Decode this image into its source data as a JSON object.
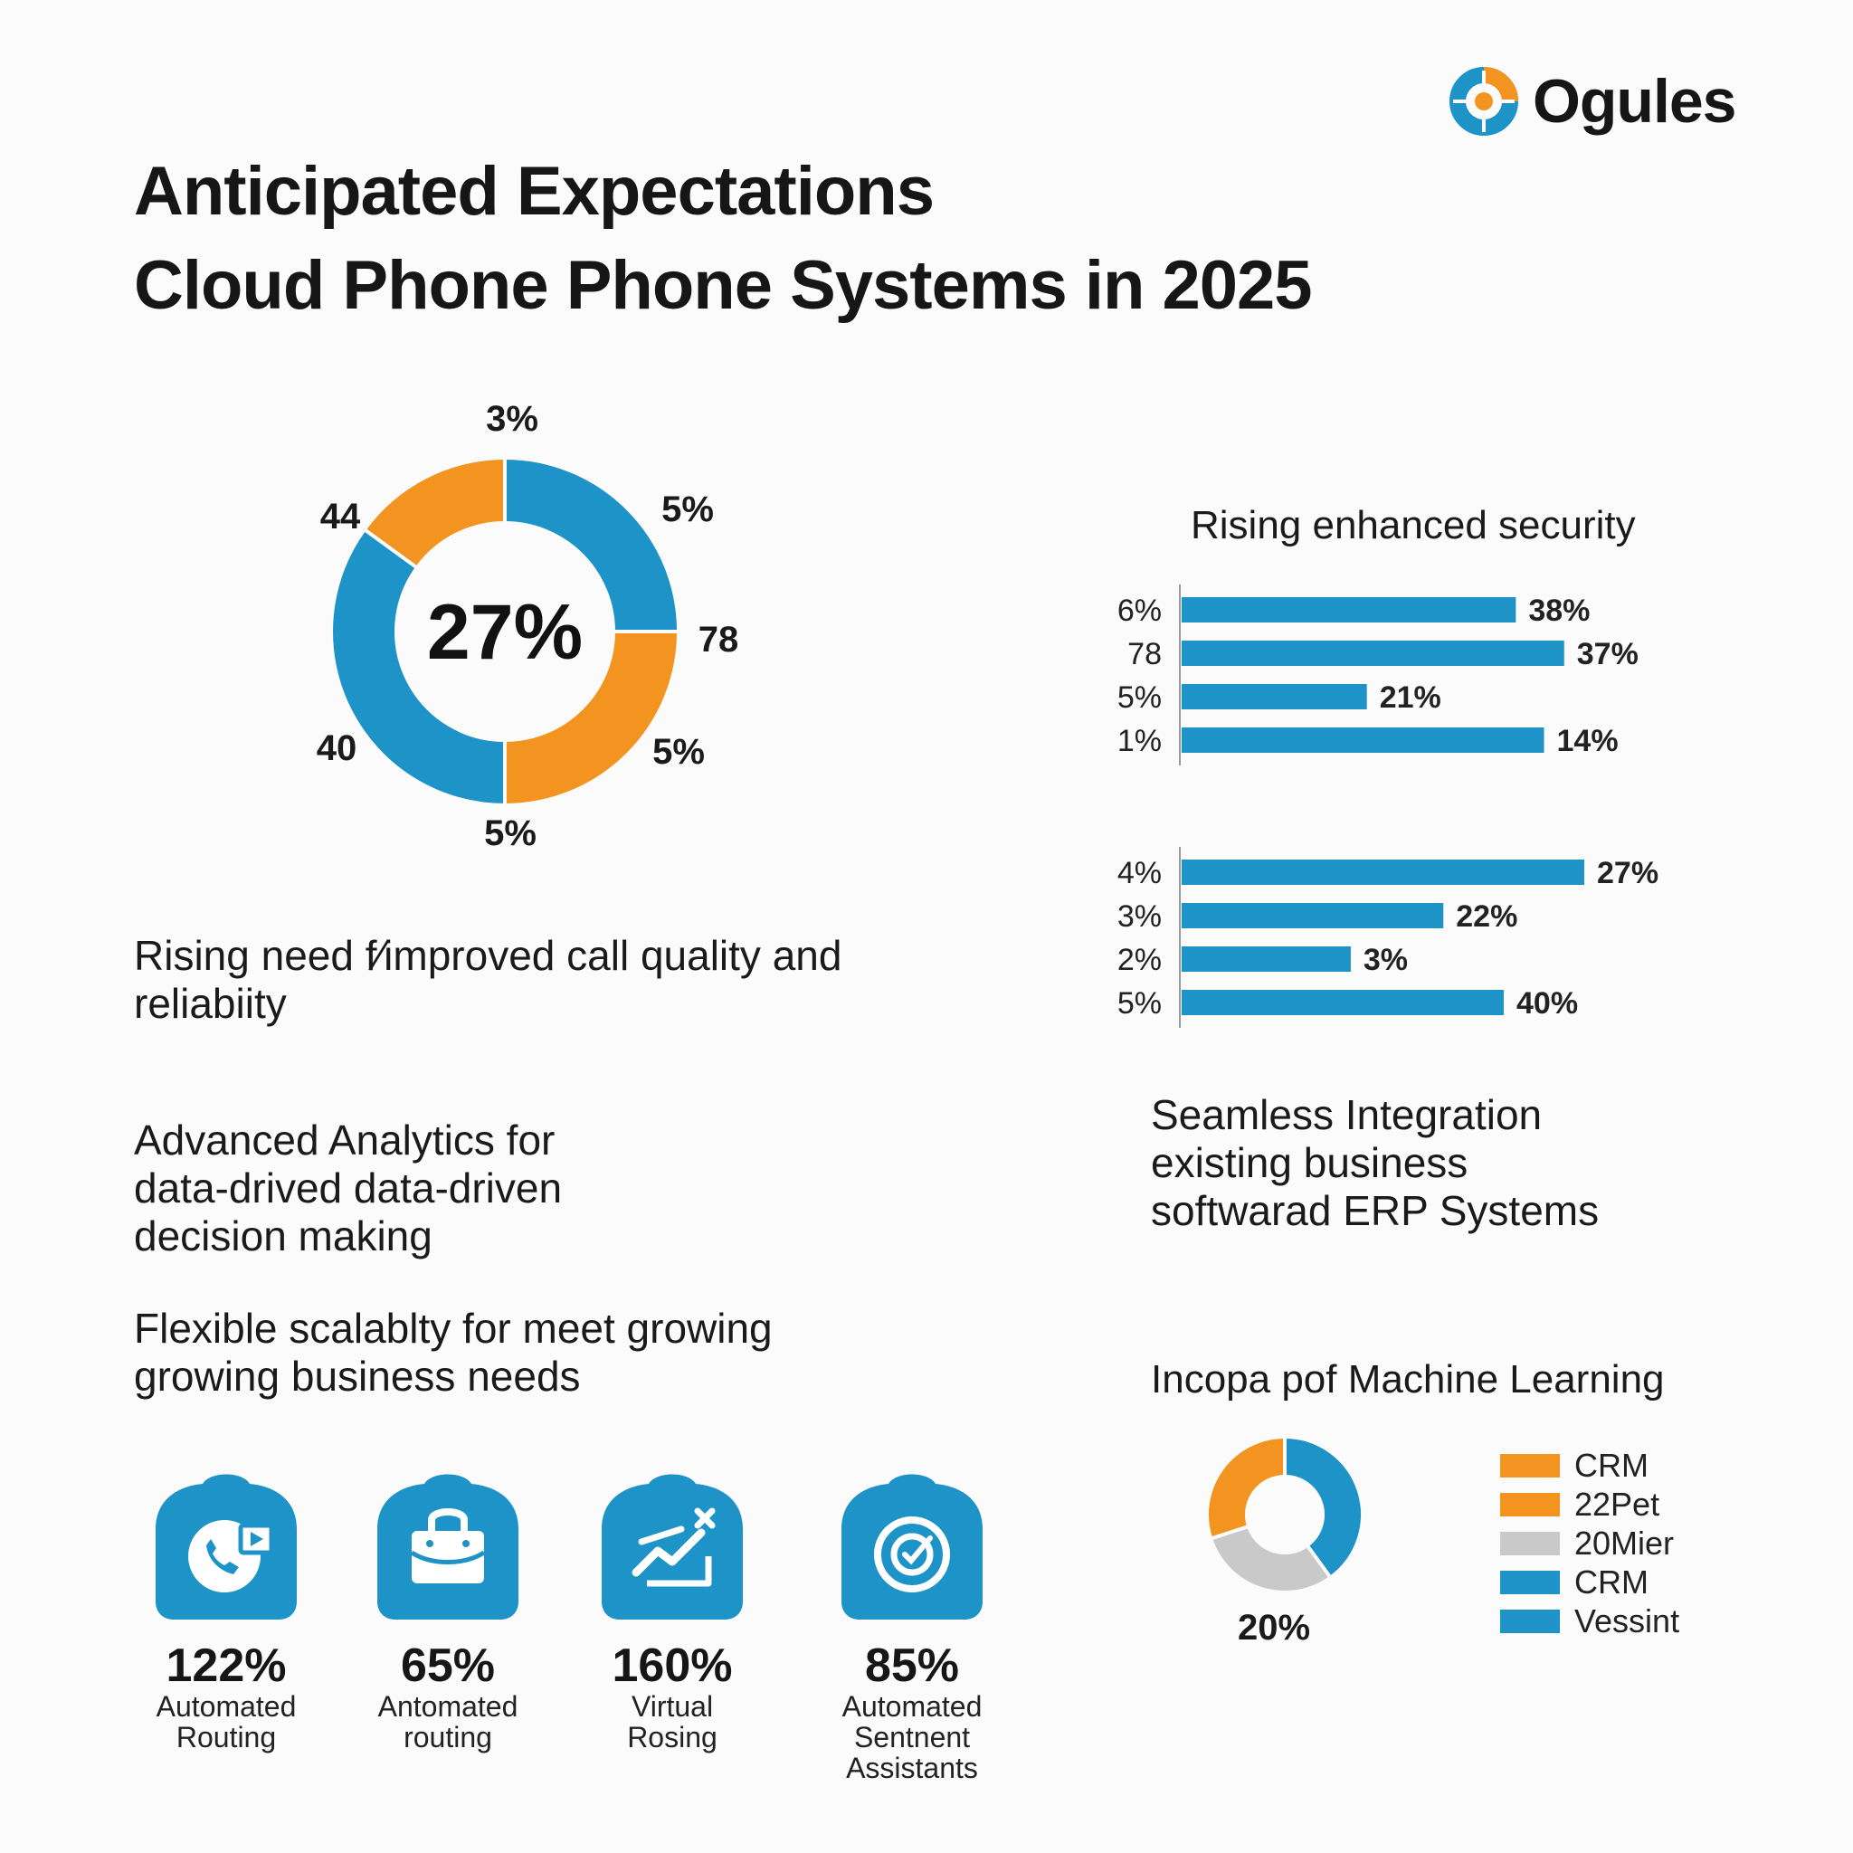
{
  "brand": {
    "name": "Ogules",
    "logo_icon": "ogules-logo-icon",
    "colors": {
      "blue": "#1e93c8",
      "orange": "#f2941f"
    }
  },
  "title": {
    "line1": "Anticipated Expectations",
    "line2": "Cloud Phone Phone Systems in 2025"
  },
  "headlines": {
    "call_quality": [
      "Rising need f⁄improved call quality and",
      "reliabiity"
    ],
    "analytics": [
      "Advanced Analytics for",
      "data-drived data-driven",
      "decision making"
    ],
    "scalability": [
      "Flexible scalablty for meet growing",
      "growing business needs"
    ],
    "integration": [
      "Seamless Integration",
      "existing business",
      "softwarad ERP Systems"
    ]
  },
  "stats": [
    {
      "icon": "phone-call-icon",
      "value": "122%",
      "label_1": "Automated",
      "label_2": "Routing"
    },
    {
      "icon": "briefcase-icon",
      "value": "65%",
      "label_1": "Antomated",
      "label_2": "routing"
    },
    {
      "icon": "trend-chart-icon",
      "value": "160%",
      "label_1": "Virtual",
      "label_2": "Rosing"
    },
    {
      "icon": "target-icon",
      "value": "85%",
      "label_1": "Automated",
      "label_2": "Sentnent Assistants"
    }
  ],
  "chart_data": [
    {
      "type": "pie",
      "variant": "donut",
      "center_label": "27%",
      "slice_labels": [
        "3%",
        "5%",
        "78",
        "5%",
        "5%",
        "40",
        "44"
      ],
      "series": [
        {
          "values": [
            25,
            25,
            35,
            15
          ],
          "colors": [
            "#1e93c8",
            "#f2941f",
            "#1e93c8",
            "#f2941f"
          ]
        }
      ],
      "slice_order": "clockwise from 12 o'clock"
    },
    {
      "type": "bar",
      "orientation": "horizontal",
      "title": "Rising enhanced security",
      "categories": [
        "6%",
        "78",
        "5%",
        "1%"
      ],
      "values": [
        38,
        37,
        21,
        14
      ],
      "value_labels": [
        "38%",
        "37%",
        "21%",
        "14%"
      ],
      "note": "printed value labels disagree with bar lengths; rendered as in the original (bars drawn at apparent lengths)",
      "apparent_lengths": [
        0.83,
        0.95,
        0.46,
        0.9
      ],
      "color": "#1e93c8"
    },
    {
      "type": "bar",
      "orientation": "horizontal",
      "categories": [
        "4%",
        "3%",
        "2%",
        "5%"
      ],
      "values": [
        27,
        22,
        3,
        40
      ],
      "value_labels": [
        "27%",
        "22%",
        "3%",
        "40%"
      ],
      "apparent_lengths": [
        1.0,
        0.65,
        0.42,
        0.8
      ],
      "color": "#1e93c8"
    },
    {
      "type": "pie",
      "variant": "donut",
      "title": "Incopa pof Machine Learning",
      "below_label": "20%",
      "series": [
        {
          "values": [
            40,
            30,
            30
          ],
          "colors": [
            "#1e93c8",
            "#c9c9c9",
            "#f2941f"
          ]
        }
      ],
      "legend": [
        {
          "label": "CRM",
          "color": "#f2941f"
        },
        {
          "label": "22Pet",
          "color": "#f2941f"
        },
        {
          "label": "20Mier",
          "color": "#c9c9c9"
        },
        {
          "label": "CRM",
          "color": "#1e93c8"
        },
        {
          "label": "Vessint",
          "color": "#1e93c8"
        }
      ],
      "legend_position": "right"
    }
  ]
}
